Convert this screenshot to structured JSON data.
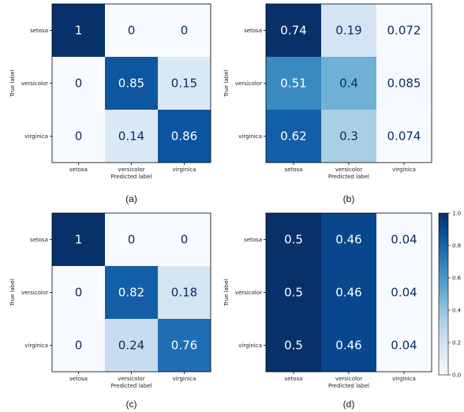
{
  "chart_data": [
    {
      "type": "heatmap",
      "caption": "(a)",
      "xlabel": "Predicted label",
      "ylabel": "True label",
      "x_categories": [
        "setosa",
        "versicolor",
        "virginica"
      ],
      "y_categories": [
        "setosa",
        "versicolor",
        "virginica"
      ],
      "values": [
        [
          1,
          0,
          0
        ],
        [
          0,
          0.85,
          0.15
        ],
        [
          0,
          0.14,
          0.86
        ]
      ],
      "labels": [
        [
          "1",
          "0",
          "0"
        ],
        [
          "0",
          "0.85",
          "0.15"
        ],
        [
          "0",
          "0.14",
          "0.86"
        ]
      ]
    },
    {
      "type": "heatmap",
      "caption": "(b)",
      "xlabel": "Predicted label",
      "ylabel": "True label",
      "x_categories": [
        "setosa",
        "versicolor",
        "virginica"
      ],
      "y_categories": [
        "setosa",
        "versicolor",
        "virginica"
      ],
      "values": [
        [
          0.74,
          0.19,
          0.072
        ],
        [
          0.51,
          0.4,
          0.085
        ],
        [
          0.62,
          0.3,
          0.074
        ]
      ],
      "labels": [
        [
          "0.74",
          "0.19",
          "0.072"
        ],
        [
          "0.51",
          "0.4",
          "0.085"
        ],
        [
          "0.62",
          "0.3",
          "0.074"
        ]
      ]
    },
    {
      "type": "heatmap",
      "caption": "(c)",
      "xlabel": "Predicted label",
      "ylabel": "True label",
      "x_categories": [
        "setosa",
        "versicolor",
        "virginica"
      ],
      "y_categories": [
        "setosa",
        "versicolor",
        "virginica"
      ],
      "values": [
        [
          1,
          0,
          0
        ],
        [
          0,
          0.82,
          0.18
        ],
        [
          0,
          0.24,
          0.76
        ]
      ],
      "labels": [
        [
          "1",
          "0",
          "0"
        ],
        [
          "0",
          "0.82",
          "0.18"
        ],
        [
          "0",
          "0.24",
          "0.76"
        ]
      ]
    },
    {
      "type": "heatmap",
      "caption": "(d)",
      "xlabel": "Predicted label",
      "ylabel": "True label",
      "x_categories": [
        "setosa",
        "versicolor",
        "virginica"
      ],
      "y_categories": [
        "setosa",
        "versicolor",
        "virginica"
      ],
      "values": [
        [
          0.5,
          0.46,
          0.04
        ],
        [
          0.5,
          0.46,
          0.04
        ],
        [
          0.5,
          0.46,
          0.04
        ]
      ],
      "labels": [
        [
          "0.5",
          "0.46",
          "0.04"
        ],
        [
          "0.5",
          "0.46",
          "0.04"
        ],
        [
          "0.5",
          "0.46",
          "0.04"
        ]
      ]
    }
  ],
  "colorbar": {
    "range": [
      0,
      1
    ],
    "ticks": [
      0,
      0.2,
      0.4,
      0.6,
      0.8,
      1.0
    ],
    "tick_labels": [
      "0.0",
      "0.2",
      "0.4",
      "0.6",
      "0.8",
      "1.0"
    ],
    "colormap": "Blues"
  }
}
